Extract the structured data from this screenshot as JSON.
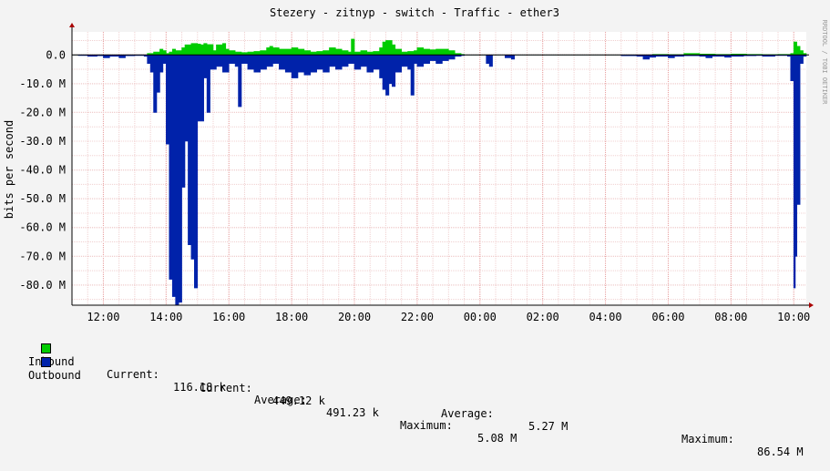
{
  "chart_data": {
    "type": "area",
    "title": "Stezery - zitnyp - switch - Traffic - ether3",
    "xlabel": "",
    "ylabel": "bits per second",
    "watermark": "RRDTOOL / TOBI OETIKER",
    "x_unit": "hours since 11:00",
    "xlim": [
      0,
      23.4
    ],
    "ylim": [
      -87000000,
      8000000
    ],
    "y_ticks": [
      0,
      -10000000,
      -20000000,
      -30000000,
      -40000000,
      -50000000,
      -60000000,
      -70000000,
      -80000000
    ],
    "y_tick_labels": [
      "0.0",
      "-10.0 M",
      "-20.0 M",
      "-30.0 M",
      "-40.0 M",
      "-50.0 M",
      "-60.0 M",
      "-70.0 M",
      "-80.0 M"
    ],
    "x_ticks": [
      1,
      3,
      5,
      7,
      9,
      11,
      13,
      15,
      17,
      19,
      21,
      23
    ],
    "x_tick_labels": [
      "12:00",
      "14:00",
      "16:00",
      "18:00",
      "20:00",
      "22:00",
      "00:00",
      "02:00",
      "04:00",
      "06:00",
      "08:00",
      "10:00"
    ],
    "grid": true,
    "series": [
      {
        "name": "Inbound",
        "color": "#00cc00",
        "points": [
          [
            0.0,
            0
          ],
          [
            2.3,
            0
          ],
          [
            2.4,
            500000
          ],
          [
            2.6,
            1000000
          ],
          [
            2.8,
            2000000
          ],
          [
            2.9,
            1500000
          ],
          [
            3.0,
            500000
          ],
          [
            3.1,
            1000000
          ],
          [
            3.2,
            2000000
          ],
          [
            3.3,
            1500000
          ],
          [
            3.5,
            2500000
          ],
          [
            3.6,
            3500000
          ],
          [
            3.8,
            4000000
          ],
          [
            4.0,
            3800000
          ],
          [
            4.1,
            3500000
          ],
          [
            4.2,
            4000000
          ],
          [
            4.3,
            3600000
          ],
          [
            4.5,
            1500000
          ],
          [
            4.6,
            3500000
          ],
          [
            4.8,
            4000000
          ],
          [
            4.9,
            2000000
          ],
          [
            5.0,
            1500000
          ],
          [
            5.2,
            1000000
          ],
          [
            5.4,
            800000
          ],
          [
            5.6,
            1000000
          ],
          [
            5.8,
            1200000
          ],
          [
            6.0,
            1500000
          ],
          [
            6.2,
            2500000
          ],
          [
            6.3,
            3000000
          ],
          [
            6.4,
            2500000
          ],
          [
            6.6,
            2000000
          ],
          [
            6.8,
            2000000
          ],
          [
            7.0,
            2500000
          ],
          [
            7.2,
            2000000
          ],
          [
            7.4,
            1500000
          ],
          [
            7.6,
            1000000
          ],
          [
            7.8,
            1200000
          ],
          [
            8.0,
            1500000
          ],
          [
            8.2,
            2500000
          ],
          [
            8.4,
            2000000
          ],
          [
            8.6,
            1500000
          ],
          [
            8.8,
            1000000
          ],
          [
            8.9,
            5500000
          ],
          [
            9.0,
            1000000
          ],
          [
            9.2,
            1500000
          ],
          [
            9.4,
            1000000
          ],
          [
            9.6,
            1200000
          ],
          [
            9.8,
            2500000
          ],
          [
            9.9,
            4500000
          ],
          [
            10.0,
            5000000
          ],
          [
            10.2,
            3500000
          ],
          [
            10.3,
            2000000
          ],
          [
            10.5,
            1000000
          ],
          [
            10.7,
            1200000
          ],
          [
            10.9,
            1500000
          ],
          [
            11.0,
            2500000
          ],
          [
            11.2,
            2000000
          ],
          [
            11.4,
            1800000
          ],
          [
            11.6,
            2000000
          ],
          [
            11.8,
            2000000
          ],
          [
            12.0,
            1500000
          ],
          [
            12.2,
            500000
          ],
          [
            12.4,
            200000
          ],
          [
            12.5,
            0
          ],
          [
            13.0,
            0
          ],
          [
            14.0,
            0
          ],
          [
            15.0,
            0
          ],
          [
            16.0,
            0
          ],
          [
            17.0,
            0
          ],
          [
            18.0,
            0
          ],
          [
            18.5,
            200000
          ],
          [
            19.0,
            100000
          ],
          [
            19.5,
            500000
          ],
          [
            20.0,
            300000
          ],
          [
            20.5,
            200000
          ],
          [
            21.0,
            300000
          ],
          [
            21.5,
            200000
          ],
          [
            22.0,
            100000
          ],
          [
            22.5,
            200000
          ],
          [
            22.9,
            500000
          ],
          [
            23.0,
            4500000
          ],
          [
            23.1,
            3000000
          ],
          [
            23.2,
            1500000
          ],
          [
            23.3,
            500000
          ],
          [
            23.4,
            0
          ]
        ]
      },
      {
        "name": "Outbound",
        "color": "#0022aa",
        "points": [
          [
            0.0,
            0
          ],
          [
            0.2,
            -200000
          ],
          [
            0.5,
            -500000
          ],
          [
            0.8,
            -300000
          ],
          [
            1.0,
            -1000000
          ],
          [
            1.2,
            -500000
          ],
          [
            1.5,
            -1000000
          ],
          [
            1.7,
            -300000
          ],
          [
            2.0,
            -200000
          ],
          [
            2.3,
            -500000
          ],
          [
            2.4,
            -3000000
          ],
          [
            2.5,
            -6000000
          ],
          [
            2.6,
            -20000000
          ],
          [
            2.7,
            -13000000
          ],
          [
            2.8,
            -6000000
          ],
          [
            2.9,
            -3000000
          ],
          [
            3.0,
            -31000000
          ],
          [
            3.1,
            -78000000
          ],
          [
            3.2,
            -84000000
          ],
          [
            3.3,
            -87000000
          ],
          [
            3.4,
            -86000000
          ],
          [
            3.5,
            -46000000
          ],
          [
            3.6,
            -30000000
          ],
          [
            3.7,
            -66000000
          ],
          [
            3.8,
            -71000000
          ],
          [
            3.9,
            -81000000
          ],
          [
            4.0,
            -23000000
          ],
          [
            4.2,
            -8000000
          ],
          [
            4.3,
            -20000000
          ],
          [
            4.4,
            -5000000
          ],
          [
            4.6,
            -4000000
          ],
          [
            4.8,
            -6000000
          ],
          [
            5.0,
            -3000000
          ],
          [
            5.2,
            -4000000
          ],
          [
            5.3,
            -18000000
          ],
          [
            5.4,
            -3000000
          ],
          [
            5.6,
            -5000000
          ],
          [
            5.8,
            -6000000
          ],
          [
            6.0,
            -5000000
          ],
          [
            6.2,
            -4000000
          ],
          [
            6.4,
            -3000000
          ],
          [
            6.6,
            -5000000
          ],
          [
            6.8,
            -6000000
          ],
          [
            7.0,
            -8000000
          ],
          [
            7.2,
            -6000000
          ],
          [
            7.4,
            -7000000
          ],
          [
            7.6,
            -6000000
          ],
          [
            7.8,
            -5000000
          ],
          [
            8.0,
            -6000000
          ],
          [
            8.2,
            -4000000
          ],
          [
            8.4,
            -5000000
          ],
          [
            8.6,
            -4000000
          ],
          [
            8.8,
            -3000000
          ],
          [
            9.0,
            -5000000
          ],
          [
            9.2,
            -4000000
          ],
          [
            9.4,
            -6000000
          ],
          [
            9.6,
            -5000000
          ],
          [
            9.8,
            -8000000
          ],
          [
            9.9,
            -12000000
          ],
          [
            10.0,
            -14000000
          ],
          [
            10.1,
            -10000000
          ],
          [
            10.2,
            -11000000
          ],
          [
            10.3,
            -6000000
          ],
          [
            10.5,
            -4000000
          ],
          [
            10.7,
            -5000000
          ],
          [
            10.8,
            -14000000
          ],
          [
            10.9,
            -3000000
          ],
          [
            11.0,
            -4000000
          ],
          [
            11.2,
            -3000000
          ],
          [
            11.4,
            -2000000
          ],
          [
            11.6,
            -3000000
          ],
          [
            11.8,
            -2000000
          ],
          [
            12.0,
            -1500000
          ],
          [
            12.2,
            -500000
          ],
          [
            12.4,
            -200000
          ],
          [
            12.5,
            0
          ],
          [
            13.1,
            0
          ],
          [
            13.2,
            -3000000
          ],
          [
            13.3,
            -4000000
          ],
          [
            13.4,
            0
          ],
          [
            13.7,
            0
          ],
          [
            13.8,
            -1000000
          ],
          [
            14.0,
            -1500000
          ],
          [
            14.1,
            0
          ],
          [
            16.0,
            0
          ],
          [
            17.0,
            0
          ],
          [
            17.5,
            -300000
          ],
          [
            18.0,
            -500000
          ],
          [
            18.2,
            -1500000
          ],
          [
            18.4,
            -800000
          ],
          [
            18.6,
            -500000
          ],
          [
            19.0,
            -1000000
          ],
          [
            19.2,
            -500000
          ],
          [
            19.5,
            -300000
          ],
          [
            20.0,
            -500000
          ],
          [
            20.2,
            -1000000
          ],
          [
            20.4,
            -500000
          ],
          [
            20.8,
            -800000
          ],
          [
            21.0,
            -500000
          ],
          [
            21.4,
            -300000
          ],
          [
            21.8,
            -200000
          ],
          [
            22.0,
            -500000
          ],
          [
            22.4,
            -200000
          ],
          [
            22.8,
            -500000
          ],
          [
            22.9,
            -9000000
          ],
          [
            23.0,
            -81000000
          ],
          [
            23.05,
            -70000000
          ],
          [
            23.1,
            -52000000
          ],
          [
            23.2,
            -3000000
          ],
          [
            23.3,
            -500000
          ],
          [
            23.4,
            0
          ]
        ]
      }
    ]
  },
  "legend": [
    {
      "name": "Inbound",
      "color": "#00cc00",
      "current_label": "Current:",
      "current_value": "116.18 k",
      "average_label": "Average:",
      "average_value": "491.23 k",
      "maximum_label": "Maximum:",
      "maximum_value": "5.08 M"
    },
    {
      "name": "Outbound",
      "color": "#0022aa",
      "current_label": "Current:",
      "current_value": "449.12 k",
      "average_label": "Average:",
      "average_value": "5.27 M",
      "maximum_label": "Maximum:",
      "maximum_value": "86.54 M"
    }
  ]
}
